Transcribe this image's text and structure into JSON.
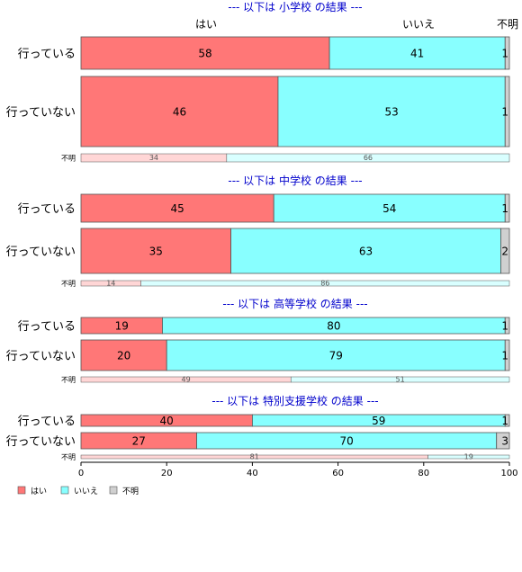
{
  "chart_data": {
    "type": "bar",
    "orientation": "horizontal",
    "stacked": true,
    "percent": true,
    "xlim": [
      0,
      100
    ],
    "x_ticks": [
      0,
      20,
      40,
      60,
      80,
      100
    ],
    "legend_position": "bottom-left",
    "colors": {
      "yes": "#ff7777",
      "no": "#88ffff",
      "unknown": "#d0d0d0",
      "title": "#0000cc",
      "light_yes": "#ffd6d6",
      "light_no": "#d9ffff"
    },
    "top_labels": {
      "yes": "はい",
      "no": "いいえ",
      "unknown": "不明"
    },
    "legend": [
      {
        "key": "yes",
        "label": "はい"
      },
      {
        "key": "no",
        "label": "いいえ"
      },
      {
        "key": "unknown",
        "label": "不明"
      }
    ],
    "panels": [
      {
        "title": "--- 以下は 小学校 の結果 ---",
        "rows": [
          {
            "label": "行っている",
            "values": [
              58,
              41,
              1
            ]
          },
          {
            "label": "行っていない",
            "values": [
              46,
              53,
              1
            ]
          },
          {
            "label": "不明",
            "values": [
              34,
              66
            ]
          }
        ]
      },
      {
        "title": "--- 以下は 中学校 の結果 ---",
        "rows": [
          {
            "label": "行っている",
            "values": [
              45,
              54,
              1
            ]
          },
          {
            "label": "行っていない",
            "values": [
              35,
              63,
              2
            ]
          },
          {
            "label": "不明",
            "values": [
              14,
              86
            ]
          }
        ]
      },
      {
        "title": "--- 以下は 高等学校 の結果 ---",
        "rows": [
          {
            "label": "行っている",
            "values": [
              19,
              80,
              1
            ]
          },
          {
            "label": "行っていない",
            "values": [
              20,
              79,
              1
            ]
          },
          {
            "label": "不明",
            "values": [
              49,
              51
            ]
          }
        ]
      },
      {
        "title": "--- 以下は 特別支援学校 の結果 ---",
        "rows": [
          {
            "label": "行っている",
            "values": [
              40,
              59,
              1
            ]
          },
          {
            "label": "行っていない",
            "values": [
              27,
              70,
              3
            ]
          },
          {
            "label": "不明",
            "values": [
              81,
              19
            ]
          }
        ]
      }
    ]
  }
}
